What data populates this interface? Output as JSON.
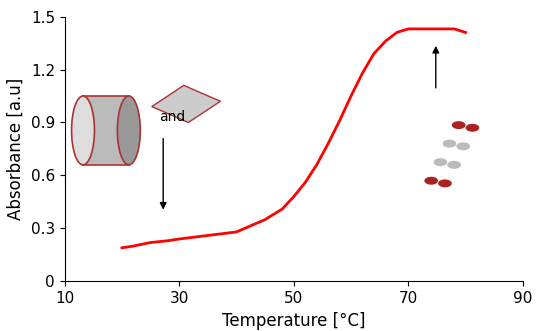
{
  "chart_data": {
    "type": "line",
    "x_label": "Temperature [°C]",
    "y_label": "Absorbance [a.u]",
    "annotation": "and",
    "x": [
      20,
      22,
      25,
      28,
      30,
      35,
      40,
      45,
      48,
      50,
      52,
      54,
      56,
      58,
      60,
      62,
      64,
      66,
      68,
      70,
      72,
      75,
      78,
      79,
      80
    ],
    "values": [
      0.19,
      0.2,
      0.22,
      0.23,
      0.24,
      0.26,
      0.28,
      0.35,
      0.41,
      0.48,
      0.56,
      0.66,
      0.78,
      0.91,
      1.05,
      1.18,
      1.29,
      1.36,
      1.41,
      1.43,
      1.43,
      1.43,
      1.43,
      1.42,
      1.41
    ],
    "color": "#ff0000",
    "xlim": [
      10,
      90
    ],
    "xticks": [
      10,
      30,
      50,
      70,
      90
    ],
    "ylim": [
      0,
      1.5
    ],
    "yticks": [
      0,
      0.3,
      0.6,
      0.9,
      1.2,
      1.5
    ],
    "grid": false
  }
}
